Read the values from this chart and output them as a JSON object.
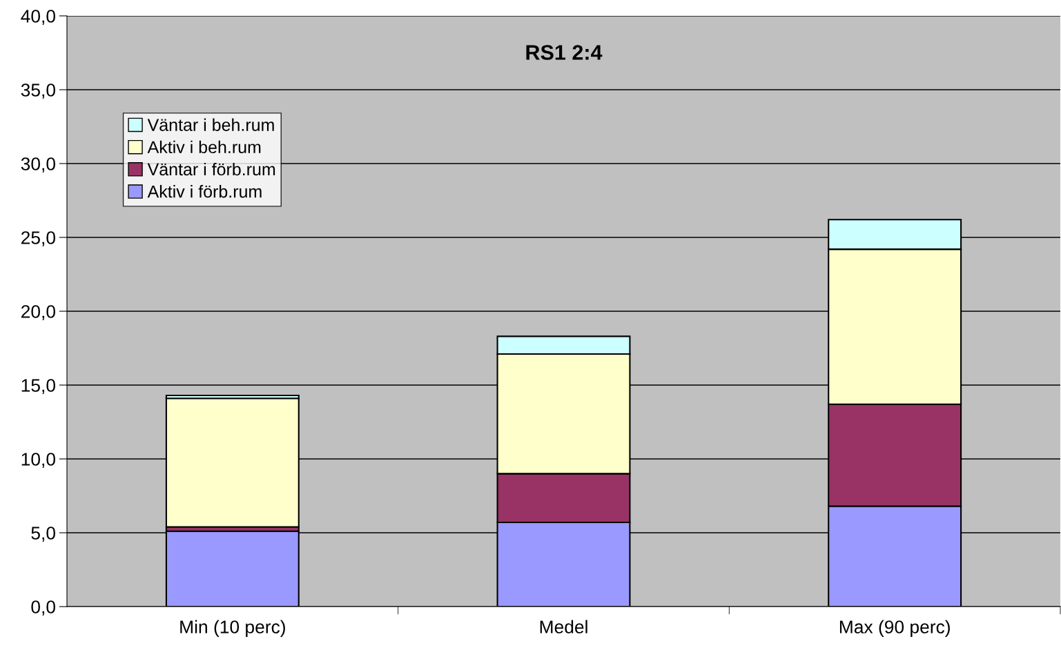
{
  "chart_data": {
    "type": "bar",
    "title": "RS1 2:4",
    "stacked": true,
    "categories": [
      "Min (10 perc)",
      "Medel",
      "Max (90 perc)"
    ],
    "series": [
      {
        "name": "Aktiv i förb.rum",
        "color": "#9999ff",
        "values": [
          5.1,
          5.7,
          6.8
        ]
      },
      {
        "name": "Väntar i förb.rum",
        "color": "#993366",
        "values": [
          0.3,
          3.3,
          6.9
        ]
      },
      {
        "name": "Aktiv i beh.rum",
        "color": "#ffffcc",
        "values": [
          8.7,
          8.1,
          10.5
        ]
      },
      {
        "name": "Väntar i beh.rum",
        "color": "#ccffff",
        "values": [
          0.2,
          1.2,
          2.0
        ]
      }
    ],
    "ylim": [
      0,
      40
    ],
    "yticks": [
      {
        "value": 0,
        "label": "0,0"
      },
      {
        "value": 5,
        "label": "5,0"
      },
      {
        "value": 10,
        "label": "10,0"
      },
      {
        "value": 15,
        "label": "15,0"
      },
      {
        "value": 20,
        "label": "20,0"
      },
      {
        "value": 25,
        "label": "25,0"
      },
      {
        "value": 30,
        "label": "30,0"
      },
      {
        "value": 35,
        "label": "35,0"
      },
      {
        "value": 40,
        "label": "40,0"
      }
    ],
    "grid": "y",
    "legend": "top left"
  }
}
